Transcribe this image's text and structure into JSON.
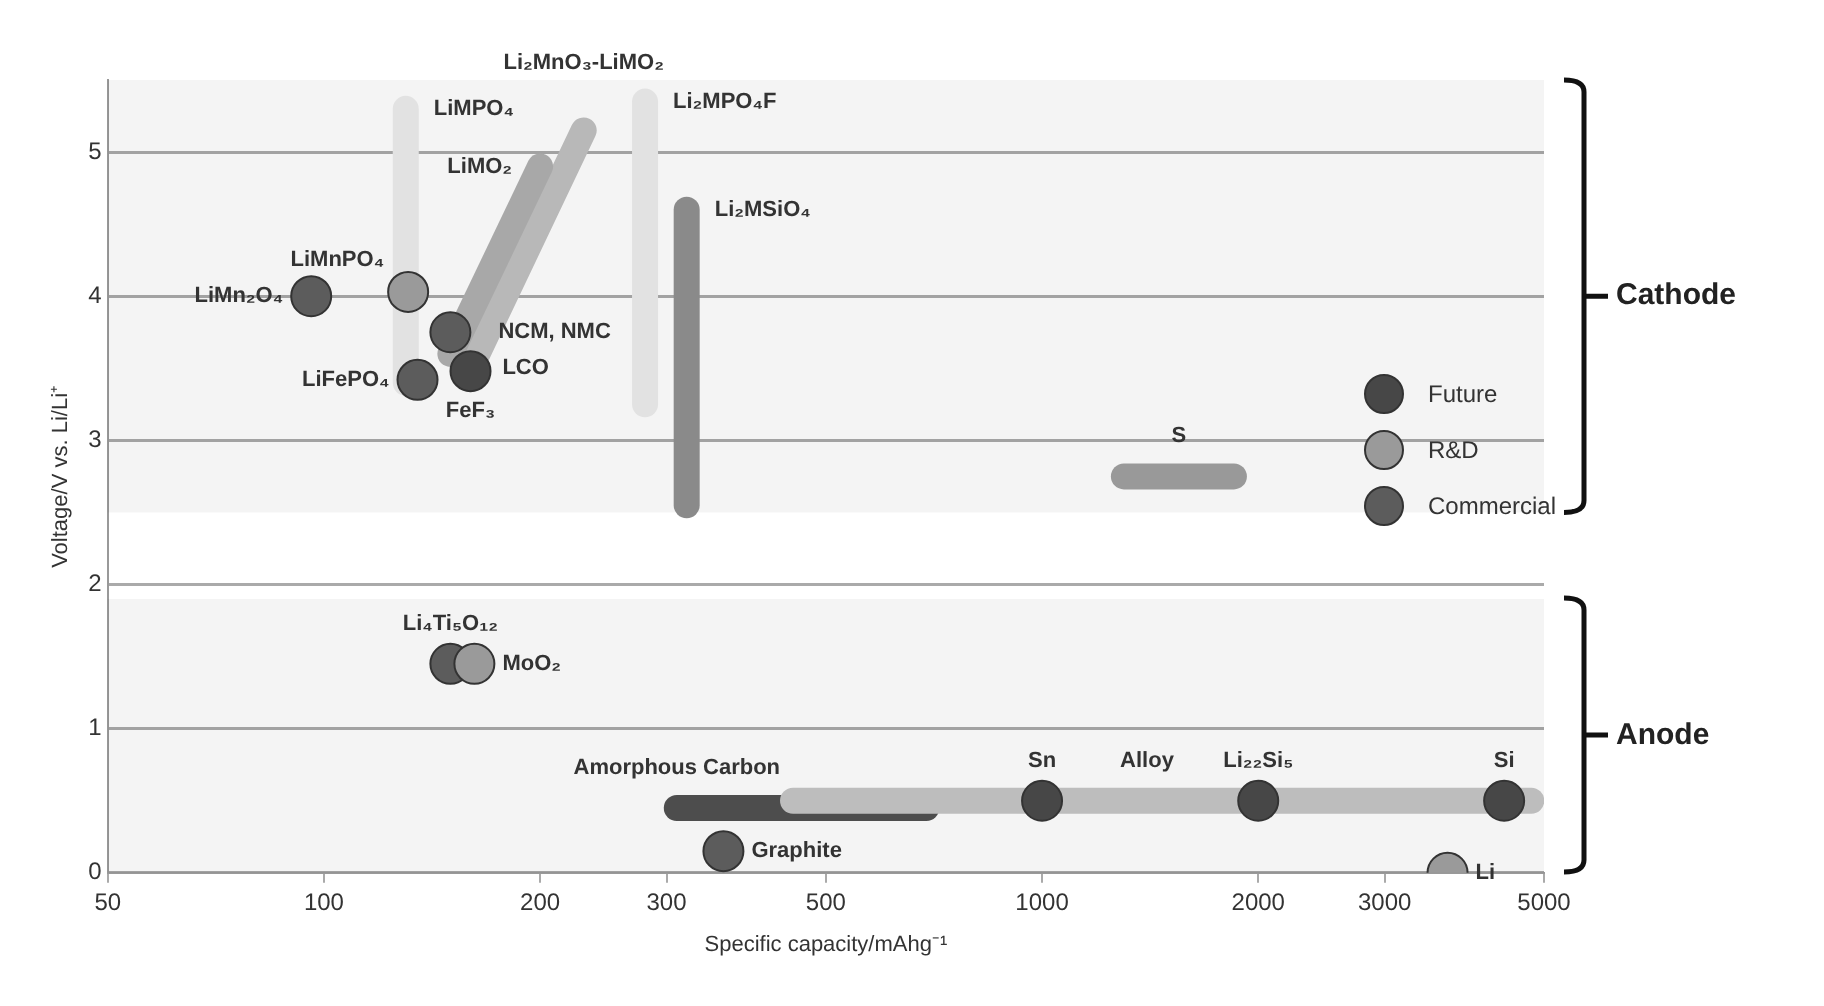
{
  "chart_data": {
    "type": "scatter",
    "xlabel": "Specific capacity/mAhg⁻¹",
    "ylabel": "Voltage/V vs. Li/Li⁺",
    "log": "x",
    "xlim": [
      50,
      5000
    ],
    "xticks": [
      50,
      100,
      200,
      300,
      500,
      1000,
      2000,
      3000,
      5000
    ],
    "ylim": [
      0,
      5.5
    ],
    "yticks": [
      0,
      1,
      2,
      3,
      4,
      5
    ],
    "grid": "y",
    "legend": "right",
    "marker": "circle",
    "series": [
      {
        "type": "line",
        "marker": "none",
        "color": "#e2e2e2",
        "x": [
          130,
          130
        ],
        "values": [
          3.4,
          5.3
        ]
      },
      {
        "type": "line",
        "marker": "none",
        "color": "#a8a8a8",
        "x": [
          150,
          200
        ],
        "values": [
          3.6,
          4.9
        ]
      },
      {
        "type": "line",
        "marker": "none",
        "color": "#b8b8b8",
        "x": [
          160,
          230
        ],
        "values": [
          3.5,
          5.15
        ]
      },
      {
        "type": "line",
        "marker": "none",
        "color": "#e2e2e2",
        "x": [
          280,
          280
        ],
        "values": [
          3.25,
          5.35
        ]
      },
      {
        "type": "line",
        "marker": "none",
        "color": "#8a8a8a",
        "x": [
          320,
          320
        ],
        "values": [
          2.55,
          4.6
        ]
      },
      {
        "type": "line",
        "marker": "none",
        "color": "#999999",
        "x": [
          1300,
          1850
        ],
        "values": [
          2.75,
          2.75
        ]
      },
      {
        "type": "line",
        "marker": "none",
        "color": "#bdbdbd",
        "x": [
          450,
          4800
        ],
        "values": [
          0.5,
          0.5
        ]
      },
      {
        "type": "line",
        "marker": "none",
        "color": "#4d4d4d",
        "x": [
          310,
          690
        ],
        "values": [
          0.45,
          0.45
        ]
      },
      {
        "name": "Future",
        "color": "#474747",
        "x": [
          160,
          1000,
          2000,
          4400
        ],
        "values": [
          3.48,
          0.5,
          0.5,
          0.5
        ]
      },
      {
        "name": "R&D",
        "color": "#9a9a9a",
        "x": [
          131,
          162,
          3670
        ],
        "values": [
          4.03,
          1.45,
          0
        ]
      },
      {
        "name": "Commercial",
        "color": "#5c5c5c",
        "x": [
          96,
          135,
          150,
          150,
          360
        ],
        "values": [
          4.0,
          3.42,
          3.75,
          1.45,
          0.15
        ]
      }
    ],
    "bands": [
      {
        "axis": "y",
        "from": 2.5,
        "to": 5.5,
        "label": "Cathode"
      },
      {
        "axis": "y",
        "from": 0,
        "to": 1.9,
        "label": "Anode"
      }
    ],
    "annotations": [
      {
        "text": "LiMPO₄",
        "x": 130,
        "y": 5.3
      },
      {
        "text": "Li₂MnO₃-LiMO₂",
        "x": 230,
        "y": 5.15
      },
      {
        "text": "LiMO₂",
        "x": 200,
        "y": 4.9
      },
      {
        "text": "Li₂MPO₄F",
        "x": 280,
        "y": 5.35
      },
      {
        "text": "Li₂MSiO₄",
        "x": 320,
        "y": 4.6
      },
      {
        "text": "LiMnPO₄",
        "x": 131,
        "y": 4.03
      },
      {
        "text": "LiMn₂O₄",
        "x": 96,
        "y": 4.0
      },
      {
        "text": "LCO",
        "x": 150,
        "y": 3.75
      },
      {
        "text": "NCM, NMC",
        "x": 150,
        "y": 3.75
      },
      {
        "text": "LiFePO₄",
        "x": 135,
        "y": 3.42
      },
      {
        "text": "FeF₃",
        "x": 160,
        "y": 3.48
      },
      {
        "text": "S",
        "x": 1550,
        "y": 2.75
      },
      {
        "text": "MoO₂",
        "x": 162,
        "y": 1.45
      },
      {
        "text": "Li₄Ti₅O₁₂",
        "x": 150,
        "y": 1.45
      },
      {
        "text": "Amorphous Carbon",
        "x": 310,
        "y": 0.45
      },
      {
        "text": "Graphite",
        "x": 360,
        "y": 0.15
      },
      {
        "text": "Sn",
        "x": 1000,
        "y": 0.5
      },
      {
        "text": "Alloy",
        "x": 1400,
        "y": 0.5
      },
      {
        "text": "Li₂₂Si₅",
        "x": 2000,
        "y": 0.5
      },
      {
        "text": "Si",
        "x": 4400,
        "y": 0.5
      },
      {
        "text": "Li",
        "x": 3670,
        "y": 0
      }
    ]
  }
}
